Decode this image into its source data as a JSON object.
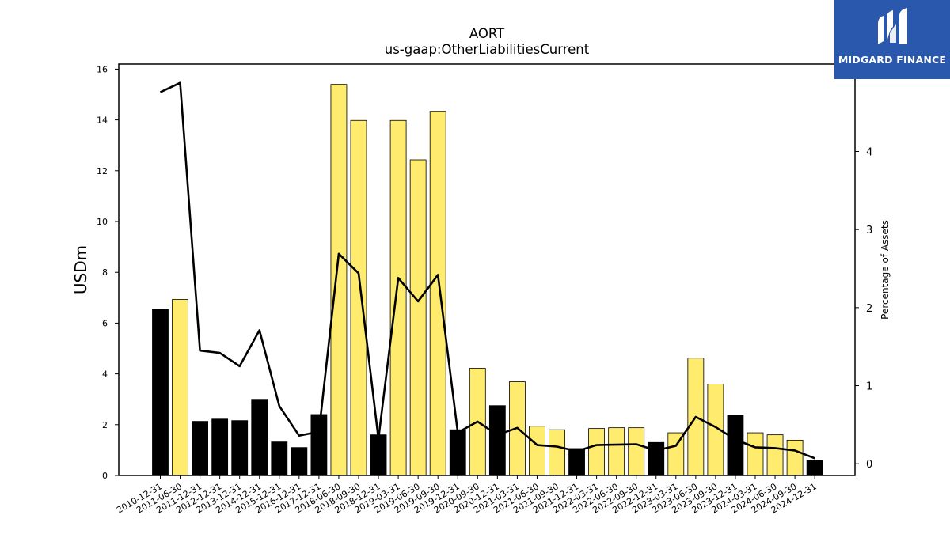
{
  "brand": {
    "name": "MIDGARD FINANCE",
    "bg_color": "#2a58ad"
  },
  "chart_data": {
    "type": "bar",
    "title": "AORT",
    "subtitle": "us-gaap:OtherLiabilitiesCurrent",
    "ylabel": "USDm",
    "y2label": "Percentage of Assets",
    "ylim": [
      0,
      16.2
    ],
    "y2lim": [
      -0.15,
      5.12
    ],
    "yticks": [
      0,
      2,
      4,
      6,
      8,
      10,
      12,
      14,
      16
    ],
    "y2ticks": [
      0,
      1,
      2,
      3,
      4
    ],
    "categories": [
      "2010-12-31",
      "2011-06-30",
      "2011-12-31",
      "2012-12-31",
      "2013-12-31",
      "2014-12-31",
      "2015-12-31",
      "2016-12-31",
      "2017-12-31",
      "2018-06-30",
      "2018-09-30",
      "2018-12-31",
      "2019-03-31",
      "2019-06-30",
      "2019-09-30",
      "2019-12-31",
      "2020-09-30",
      "2020-12-31",
      "2021-03-31",
      "2021-06-30",
      "2021-09-30",
      "2021-12-31",
      "2022-03-31",
      "2022-06-30",
      "2022-09-30",
      "2022-12-31",
      "2023-03-31",
      "2023-06-30",
      "2023-09-30",
      "2023-12-31",
      "2024-03-31",
      "2024-06-30",
      "2024-09-30",
      "2024-12-31"
    ],
    "values": [
      6.53,
      6.93,
      2.13,
      2.22,
      2.16,
      3.0,
      1.32,
      1.1,
      2.4,
      15.4,
      13.98,
      1.6,
      13.98,
      12.43,
      14.34,
      1.8,
      4.22,
      2.75,
      3.69,
      1.94,
      1.8,
      1.06,
      1.85,
      1.88,
      1.88,
      1.3,
      1.68,
      4.62,
      3.6,
      2.38,
      1.68,
      1.6,
      1.39,
      0.58
    ],
    "fiscal_year_end": [
      true,
      false,
      true,
      true,
      true,
      true,
      true,
      true,
      true,
      false,
      false,
      true,
      false,
      false,
      false,
      true,
      false,
      true,
      false,
      false,
      false,
      true,
      false,
      false,
      false,
      true,
      false,
      false,
      false,
      true,
      false,
      false,
      false,
      true
    ],
    "pct_assets": [
      4.76,
      4.88,
      1.45,
      1.42,
      1.25,
      1.71,
      0.74,
      0.36,
      0.41,
      2.69,
      2.44,
      0.32,
      2.38,
      2.08,
      2.42,
      0.4,
      0.54,
      0.37,
      0.46,
      0.24,
      0.22,
      0.16,
      0.24,
      0.245,
      0.25,
      0.17,
      0.23,
      0.6,
      0.47,
      0.31,
      0.21,
      0.2,
      0.17,
      0.07
    ],
    "colors": {
      "fiscal_year_end": "#000000",
      "interim": "#ffeb6e",
      "line": "#000000"
    },
    "grid": false,
    "legend": "none"
  }
}
